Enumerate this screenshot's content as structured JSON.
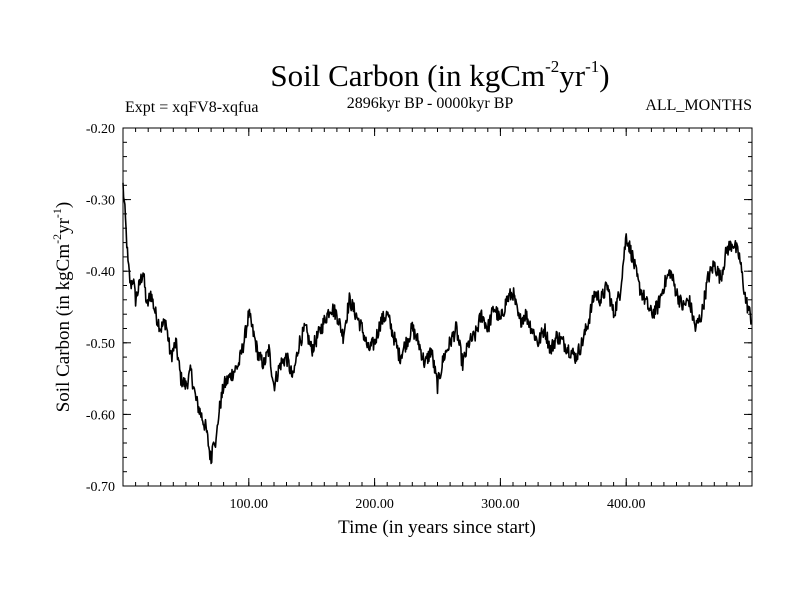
{
  "chart_data": {
    "type": "line",
    "title_main": "Soil Carbon (in kgCm",
    "title_exp1": "-2",
    "title_mid": "yr",
    "title_exp2": "-1",
    "title_close": ")",
    "subtitle_left": "Expt = xqFV8-xqfua",
    "subtitle_center": "2896kyr BP - 0000kyr BP",
    "subtitle_right": "ALL_MONTHS",
    "xlabel": "Time (in years since start)",
    "ylabel_main": "Soil Carbon (in kgCm",
    "ylabel_exp1": "-2",
    "ylabel_mid": "yr",
    "ylabel_exp2": "-1",
    "ylabel_close": ")",
    "xlim": [
      0,
      500
    ],
    "ylim": [
      -0.7,
      -0.2
    ],
    "x_ticks": [
      100,
      200,
      300,
      400
    ],
    "x_tick_labels": [
      "100.00",
      "200.00",
      "300.00",
      "400.00"
    ],
    "y_ticks": [
      -0.7,
      -0.6,
      -0.5,
      -0.4,
      -0.3,
      -0.2
    ],
    "y_tick_labels": [
      "-0.70",
      "-0.60",
      "-0.50",
      "-0.40",
      "-0.30",
      "-0.20"
    ],
    "series": [
      {
        "name": "Soil Carbon",
        "color": "#000000",
        "x": [
          0,
          2,
          4,
          6,
          8,
          10,
          13,
          16,
          19,
          22,
          26,
          30,
          34,
          38,
          42,
          46,
          50,
          54,
          58,
          62,
          66,
          70,
          72,
          74,
          76,
          80,
          84,
          88,
          92,
          96,
          100,
          104,
          108,
          112,
          116,
          120,
          125,
          130,
          135,
          140,
          145,
          150,
          155,
          160,
          165,
          170,
          175,
          180,
          185,
          190,
          195,
          200,
          205,
          210,
          215,
          220,
          225,
          230,
          235,
          240,
          245,
          250,
          255,
          260,
          265,
          270,
          275,
          280,
          285,
          290,
          295,
          300,
          305,
          310,
          315,
          320,
          325,
          330,
          335,
          340,
          345,
          350,
          355,
          360,
          365,
          370,
          375,
          380,
          385,
          390,
          395,
          400,
          405,
          410,
          415,
          420,
          425,
          430,
          435,
          440,
          445,
          450,
          455,
          460,
          465,
          470,
          475,
          480,
          485,
          490,
          495,
          500
        ],
        "values": [
          -0.28,
          -0.33,
          -0.39,
          -0.42,
          -0.41,
          -0.44,
          -0.42,
          -0.4,
          -0.45,
          -0.43,
          -0.46,
          -0.48,
          -0.47,
          -0.52,
          -0.5,
          -0.55,
          -0.56,
          -0.54,
          -0.58,
          -0.6,
          -0.62,
          -0.665,
          -0.63,
          -0.64,
          -0.6,
          -0.56,
          -0.55,
          -0.54,
          -0.53,
          -0.5,
          -0.46,
          -0.49,
          -0.52,
          -0.53,
          -0.51,
          -0.56,
          -0.53,
          -0.52,
          -0.55,
          -0.5,
          -0.48,
          -0.51,
          -0.49,
          -0.47,
          -0.45,
          -0.46,
          -0.49,
          -0.44,
          -0.46,
          -0.48,
          -0.51,
          -0.5,
          -0.47,
          -0.46,
          -0.49,
          -0.52,
          -0.5,
          -0.48,
          -0.5,
          -0.53,
          -0.51,
          -0.56,
          -0.52,
          -0.5,
          -0.48,
          -0.53,
          -0.5,
          -0.49,
          -0.46,
          -0.48,
          -0.45,
          -0.47,
          -0.44,
          -0.43,
          -0.47,
          -0.46,
          -0.48,
          -0.5,
          -0.48,
          -0.51,
          -0.49,
          -0.5,
          -0.51,
          -0.52,
          -0.5,
          -0.47,
          -0.43,
          -0.44,
          -0.42,
          -0.46,
          -0.43,
          -0.35,
          -0.38,
          -0.42,
          -0.44,
          -0.46,
          -0.45,
          -0.42,
          -0.4,
          -0.43,
          -0.45,
          -0.44,
          -0.48,
          -0.46,
          -0.41,
          -0.39,
          -0.41,
          -0.37,
          -0.36,
          -0.38,
          -0.44,
          -0.47
        ]
      }
    ]
  }
}
